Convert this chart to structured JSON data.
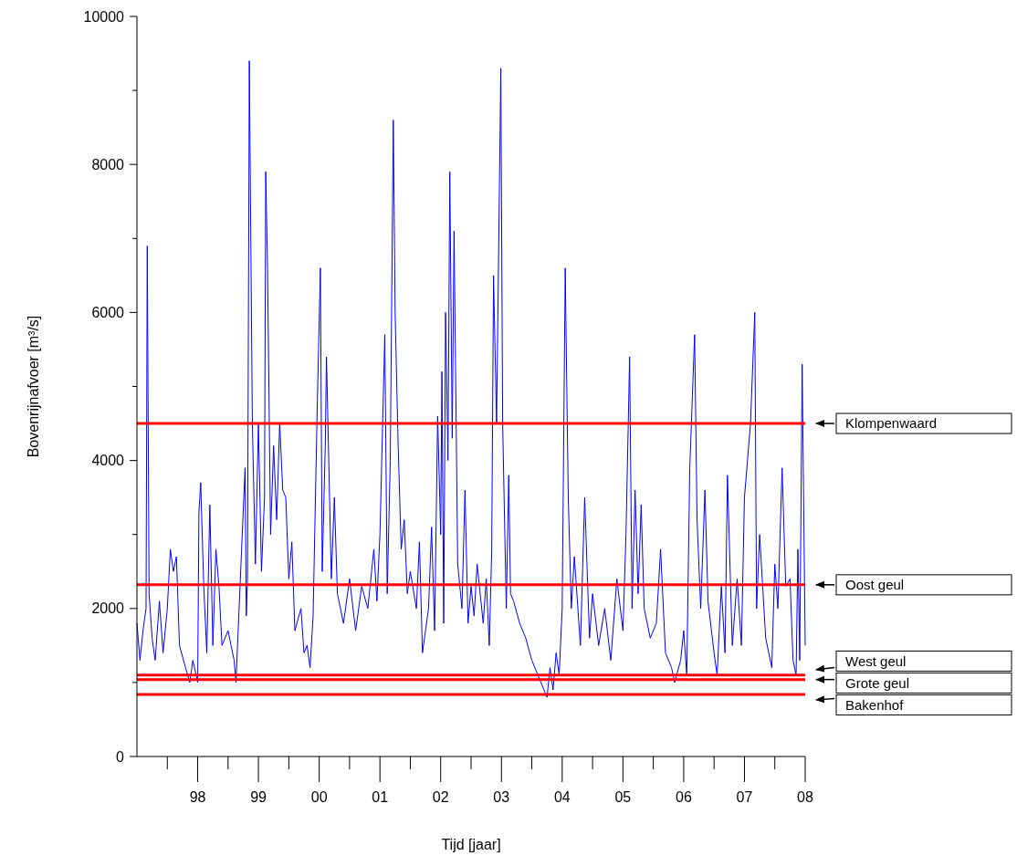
{
  "chart_data": {
    "type": "line",
    "xlabel": "Tijd [jaar]",
    "ylabel": "Bovenrijnafvoer [m³/s]",
    "xlim": [
      1997,
      2008
    ],
    "ylim": [
      0,
      10000
    ],
    "xticks": [
      {
        "value": 1997.5,
        "label": null
      },
      {
        "value": 1998,
        "label": "98"
      },
      {
        "value": 1998.5,
        "label": null
      },
      {
        "value": 1999,
        "label": "99"
      },
      {
        "value": 1999.5,
        "label": null
      },
      {
        "value": 2000,
        "label": "00"
      },
      {
        "value": 2000.5,
        "label": null
      },
      {
        "value": 2001,
        "label": "01"
      },
      {
        "value": 2001.5,
        "label": null
      },
      {
        "value": 2002,
        "label": "02"
      },
      {
        "value": 2002.5,
        "label": null
      },
      {
        "value": 2003,
        "label": "03"
      },
      {
        "value": 2003.5,
        "label": null
      },
      {
        "value": 2004,
        "label": "04"
      },
      {
        "value": 2004.5,
        "label": null
      },
      {
        "value": 2005,
        "label": "05"
      },
      {
        "value": 2005.5,
        "label": null
      },
      {
        "value": 2006,
        "label": "06"
      },
      {
        "value": 2006.5,
        "label": null
      },
      {
        "value": 2007,
        "label": "07"
      },
      {
        "value": 2007.5,
        "label": null
      },
      {
        "value": 2008,
        "label": "08"
      }
    ],
    "yticks": [
      0,
      {
        "value": 1000,
        "label": null
      },
      2000,
      {
        "value": 3000,
        "label": null
      },
      4000,
      {
        "value": 5000,
        "label": null
      },
      6000,
      {
        "value": 7000,
        "label": null
      },
      8000,
      {
        "value": 9000,
        "label": null
      },
      10000
    ],
    "grid": false,
    "marker": "none",
    "line_style": "solid",
    "series": [
      {
        "color": "#0000ff",
        "x": [
          1997.0,
          1997.05,
          1997.1,
          1997.15,
          1997.17,
          1997.2,
          1997.25,
          1997.3,
          1997.37,
          1997.43,
          1997.5,
          1997.55,
          1997.6,
          1997.65,
          1997.7,
          1997.8,
          1997.87,
          1997.92,
          1998.0,
          1998.02,
          1998.05,
          1998.1,
          1998.15,
          1998.2,
          1998.25,
          1998.3,
          1998.35,
          1998.4,
          1998.5,
          1998.6,
          1998.63,
          1998.78,
          1998.8,
          1998.82,
          1998.85,
          1998.9,
          1998.95,
          1999.0,
          1999.05,
          1999.1,
          1999.12,
          1999.15,
          1999.2,
          1999.25,
          1999.3,
          1999.35,
          1999.4,
          1999.45,
          1999.5,
          1999.55,
          1999.6,
          1999.7,
          1999.75,
          1999.8,
          1999.85,
          1999.9,
          1999.97,
          2000.02,
          2000.05,
          2000.1,
          2000.12,
          2000.2,
          2000.25,
          2000.3,
          2000.4,
          2000.5,
          2000.6,
          2000.7,
          2000.8,
          2000.9,
          2000.95,
          2001.0,
          2001.08,
          2001.12,
          2001.17,
          2001.22,
          2001.25,
          2001.3,
          2001.35,
          2001.4,
          2001.45,
          2001.5,
          2001.6,
          2001.65,
          2001.7,
          2001.8,
          2001.85,
          2001.9,
          2001.95,
          2002.0,
          2002.02,
          2002.05,
          2002.08,
          2002.12,
          2002.15,
          2002.19,
          2002.22,
          2002.28,
          2002.35,
          2002.4,
          2002.45,
          2002.5,
          2002.55,
          2002.6,
          2002.7,
          2002.75,
          2002.8,
          2002.84,
          2002.87,
          2002.92,
          2002.99,
          2003.02,
          2003.08,
          2003.12,
          2003.15,
          2003.2,
          2003.3,
          2003.4,
          2003.5,
          2003.6,
          2003.7,
          2003.75,
          2003.8,
          2003.85,
          2003.9,
          2003.95,
          2004.0,
          2004.05,
          2004.1,
          2004.15,
          2004.2,
          2004.3,
          2004.37,
          2004.45,
          2004.5,
          2004.6,
          2004.7,
          2004.8,
          2004.9,
          2005.0,
          2005.05,
          2005.11,
          2005.15,
          2005.2,
          2005.25,
          2005.3,
          2005.35,
          2005.45,
          2005.55,
          2005.62,
          2005.7,
          2005.8,
          2005.85,
          2005.95,
          2006.0,
          2006.05,
          2006.1,
          2006.18,
          2006.22,
          2006.28,
          2006.35,
          2006.4,
          2006.5,
          2006.55,
          2006.62,
          2006.68,
          2006.72,
          2006.8,
          2006.88,
          2006.95,
          2007.0,
          2007.1,
          2007.17,
          2007.2,
          2007.25,
          2007.35,
          2007.45,
          2007.5,
          2007.55,
          2007.62,
          2007.68,
          2007.75,
          2007.8,
          2007.85,
          2007.88,
          2007.91,
          2007.95,
          2008.0
        ],
        "values": [
          1800,
          1300,
          1700,
          2000,
          6900,
          2200,
          1600,
          1300,
          2100,
          1400,
          2000,
          2800,
          2500,
          2700,
          1500,
          1200,
          1000,
          1300,
          1000,
          3300,
          3700,
          2300,
          1400,
          3400,
          1500,
          2800,
          2300,
          1500,
          1700,
          1300,
          1000,
          3900,
          1900,
          2400,
          9400,
          4500,
          2600,
          4500,
          2500,
          3500,
          7900,
          6600,
          3000,
          4200,
          3200,
          4500,
          3600,
          3500,
          2400,
          2900,
          1700,
          2000,
          1400,
          1500,
          1200,
          1900,
          4800,
          6600,
          2500,
          4200,
          5400,
          2400,
          3500,
          2200,
          1800,
          2400,
          1700,
          2300,
          2000,
          2800,
          2100,
          3000,
          5700,
          2200,
          4000,
          8600,
          6000,
          4200,
          2800,
          3200,
          2200,
          2500,
          2000,
          2900,
          1400,
          2000,
          3100,
          1700,
          4600,
          3000,
          5200,
          1800,
          6000,
          4000,
          7900,
          4300,
          7100,
          2600,
          2000,
          3600,
          1800,
          2300,
          1900,
          2600,
          1800,
          2400,
          1500,
          2800,
          6500,
          4500,
          9300,
          4500,
          2000,
          3800,
          2200,
          2100,
          1800,
          1600,
          1300,
          1100,
          900,
          800,
          1200,
          900,
          1400,
          1100,
          2000,
          6600,
          3500,
          2000,
          2700,
          1500,
          3500,
          1600,
          2200,
          1500,
          2000,
          1300,
          2400,
          1700,
          3000,
          5400,
          2000,
          3600,
          2200,
          3400,
          2000,
          1600,
          1800,
          2800,
          1400,
          1200,
          1000,
          1300,
          1700,
          1100,
          3900,
          5700,
          3200,
          2000,
          3600,
          2100,
          1400,
          1100,
          2300,
          1400,
          3800,
          1500,
          2400,
          1500,
          3500,
          4500,
          6000,
          2000,
          3000,
          1600,
          1200,
          2600,
          2000,
          3900,
          2300,
          2400,
          1300,
          1100,
          2800,
          1300,
          5300,
          1500
        ]
      }
    ],
    "ref_lines": [
      {
        "axis": "y",
        "value": 4500,
        "label": "Klompenwaard",
        "color": "#ff0000"
      },
      {
        "axis": "y",
        "value": 2320,
        "label": "Oost geul",
        "color": "#ff0000"
      },
      {
        "axis": "y",
        "value": 1100,
        "label": "West geul",
        "color": "#ff0000"
      },
      {
        "axis": "y",
        "value": 1040,
        "label": "Grote geul",
        "color": "#ff0000"
      },
      {
        "axis": "y",
        "value": 840,
        "label": "Bakenhof",
        "color": "#ff0000"
      }
    ]
  }
}
